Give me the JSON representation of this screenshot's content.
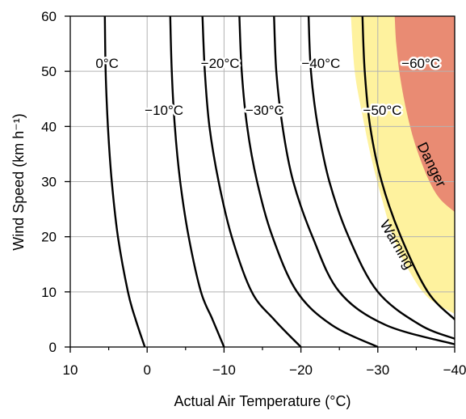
{
  "chart_data": {
    "type": "line",
    "xlabel": "Actual Air Temperature (°C)",
    "ylabel": "Wind Speed (km h⁻¹)",
    "xlim": [
      10,
      -40
    ],
    "ylim": [
      0,
      60
    ],
    "x_ticks": [
      10,
      0,
      -10,
      -20,
      -30,
      -40
    ],
    "x_tick_labels": [
      "10",
      "0",
      "−10",
      "−20",
      "−30",
      "−40"
    ],
    "y_ticks": [
      0,
      10,
      20,
      30,
      40,
      50,
      60
    ],
    "y_tick_labels": [
      "0",
      "10",
      "20",
      "30",
      "40",
      "50",
      "60"
    ],
    "grid": true,
    "zone_colors": {
      "warning": "#fef29e",
      "danger": "#e98b73"
    },
    "zones": [
      {
        "id": "warning",
        "label": "Warning",
        "upper_boundary": [
          [
            -26.5,
            60
          ],
          [
            -27,
            50
          ],
          [
            -28,
            42
          ],
          [
            -29.2,
            34
          ],
          [
            -30.5,
            27
          ],
          [
            -32,
            20
          ],
          [
            -34,
            14
          ],
          [
            -36.5,
            9
          ],
          [
            -40,
            6
          ]
        ]
      },
      {
        "id": "danger",
        "label": "Danger",
        "upper_boundary": [
          [
            -32.2,
            60
          ],
          [
            -32.4,
            55
          ],
          [
            -32.9,
            49
          ],
          [
            -33.7,
            43
          ],
          [
            -34.8,
            37
          ],
          [
            -36.4,
            31
          ],
          [
            -38,
            27
          ],
          [
            -40,
            24.5
          ]
        ]
      }
    ],
    "series": [
      {
        "name": "0°C",
        "points": [
          [
            5.5,
            60
          ],
          [
            5.4,
            50
          ],
          [
            5.1,
            40
          ],
          [
            4.6,
            30
          ],
          [
            3.8,
            20
          ],
          [
            2.5,
            10
          ],
          [
            1.5,
            5
          ],
          [
            0.3,
            0
          ]
        ]
      },
      {
        "name": "−10°C",
        "points": [
          [
            -3,
            60
          ],
          [
            -3.2,
            50
          ],
          [
            -3.6,
            40
          ],
          [
            -4.3,
            30
          ],
          [
            -5.4,
            20
          ],
          [
            -7,
            10
          ],
          [
            -8.5,
            5
          ],
          [
            -10,
            0
          ]
        ]
      },
      {
        "name": "−20°C",
        "points": [
          [
            -7.2,
            60
          ],
          [
            -7.5,
            50
          ],
          [
            -8.1,
            40
          ],
          [
            -9.3,
            30
          ],
          [
            -11,
            20
          ],
          [
            -13.6,
            10
          ],
          [
            -16.5,
            5
          ],
          [
            -20,
            0
          ]
        ]
      },
      {
        "name": "−30°C",
        "points": [
          [
            -12,
            60
          ],
          [
            -12.3,
            50
          ],
          [
            -13,
            40
          ],
          [
            -14.3,
            30
          ],
          [
            -16.3,
            20
          ],
          [
            -19.5,
            10
          ],
          [
            -24,
            4
          ],
          [
            -30,
            0
          ]
        ]
      },
      {
        "name": "−40°C",
        "points": [
          [
            -16.5,
            60
          ],
          [
            -16.8,
            50
          ],
          [
            -17.6,
            40
          ],
          [
            -19,
            30
          ],
          [
            -21.5,
            20
          ],
          [
            -25,
            10
          ],
          [
            -31,
            4
          ],
          [
            -40,
            0.5
          ]
        ]
      },
      {
        "name": "−50°C",
        "points": [
          [
            -21,
            60
          ],
          [
            -21.3,
            50
          ],
          [
            -22.2,
            40
          ],
          [
            -23.7,
            30
          ],
          [
            -26.2,
            20
          ],
          [
            -30,
            10
          ],
          [
            -35.5,
            4
          ],
          [
            -40,
            1.5
          ]
        ]
      },
      {
        "name": "−60°C",
        "points": [
          [
            -28,
            60
          ],
          [
            -28.3,
            50
          ],
          [
            -29,
            40
          ],
          [
            -30.5,
            30
          ],
          [
            -33,
            20
          ],
          [
            -36.5,
            10
          ],
          [
            -40,
            5
          ]
        ]
      }
    ],
    "curve_labels": [
      {
        "text": "0°C",
        "x": 5.2,
        "y": 51.5
      },
      {
        "text": "−10°C",
        "x": -2.2,
        "y": 43
      },
      {
        "text": "−20°C",
        "x": -9.5,
        "y": 51.5
      },
      {
        "text": "−30°C",
        "x": -15.3,
        "y": 43
      },
      {
        "text": "−40°C",
        "x": -22.6,
        "y": 51.5
      },
      {
        "text": "−50°C",
        "x": -30.6,
        "y": 43
      },
      {
        "text": "−60°C",
        "x": -35.6,
        "y": 51.5
      }
    ],
    "zone_labels": [
      {
        "text": "Danger",
        "x": -36.9,
        "y": 33,
        "angle": 64
      },
      {
        "text": "Warning",
        "x": -32.4,
        "y": 18.5,
        "angle": 60
      }
    ]
  }
}
